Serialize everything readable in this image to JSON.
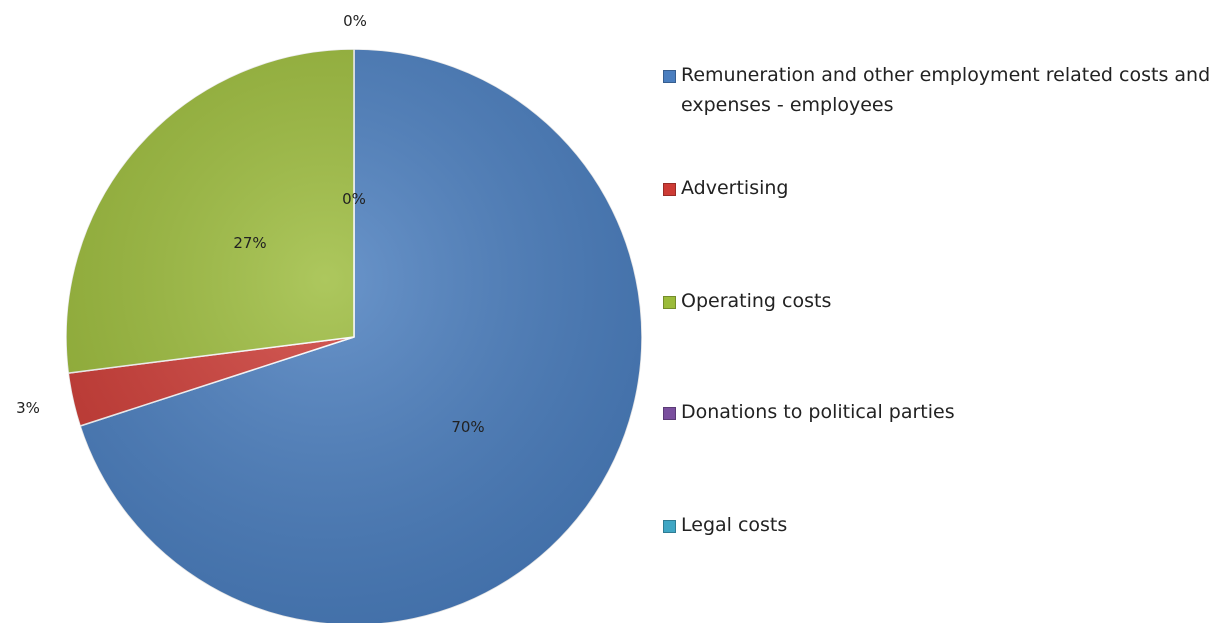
{
  "chart_data": {
    "type": "pie",
    "title": "",
    "slices": [
      {
        "name": "Remuneration and other employment related costs and expenses - employees",
        "value": 70,
        "label": "70%",
        "color": "#4a7ebf"
      },
      {
        "name": "Advertising",
        "value": 3,
        "label": "3%",
        "color": "#cd3b35"
      },
      {
        "name": "Operating costs",
        "value": 27,
        "label": "27%",
        "color": "#9bbb3a"
      },
      {
        "name": "Donations to political parties",
        "value": 0,
        "label": "0%",
        "color": "#7a4f9e"
      },
      {
        "name": "Legal costs",
        "value": 0,
        "label": "0%",
        "color": "#3fa6c4"
      }
    ],
    "legend_position": "right"
  },
  "legend": {
    "items": [
      {
        "label": "Remuneration and other employment related costs and expenses - employees",
        "color": "#4a7ebf"
      },
      {
        "label": "Advertising",
        "color": "#cd3b35"
      },
      {
        "label": "Operating costs",
        "color": "#9bbb3a"
      },
      {
        "label": "Donations to political parties",
        "color": "#7a4f9e"
      },
      {
        "label": "Legal costs",
        "color": "#3fa6c4"
      }
    ]
  }
}
